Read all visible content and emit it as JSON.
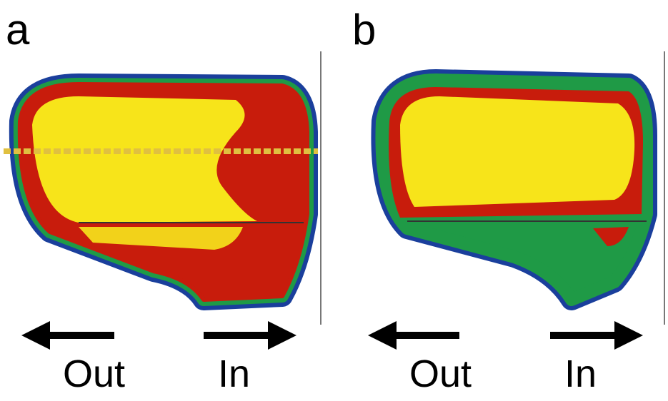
{
  "panels": [
    {
      "label": "a",
      "left_label": "Out",
      "right_label": "In"
    },
    {
      "label": "b",
      "left_label": "Out",
      "right_label": "In"
    }
  ]
}
